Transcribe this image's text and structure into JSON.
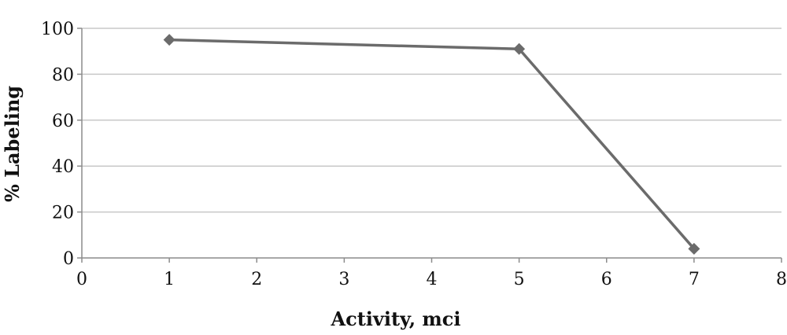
{
  "chart_data": {
    "type": "line",
    "xlabel": "Activity, mci",
    "ylabel": "% Labeling",
    "xlim": [
      0,
      8
    ],
    "ylim": [
      0,
      100
    ],
    "x_ticks": [
      0,
      1,
      2,
      3,
      4,
      5,
      6,
      7,
      8
    ],
    "y_ticks": [
      0,
      20,
      40,
      60,
      80,
      100
    ],
    "grid": {
      "horizontal": true,
      "vertical": false
    },
    "series": [
      {
        "x": [
          1,
          5,
          7
        ],
        "y": [
          95,
          91,
          4
        ],
        "color": "#6b6b6b",
        "marker": "diamond"
      }
    ]
  }
}
